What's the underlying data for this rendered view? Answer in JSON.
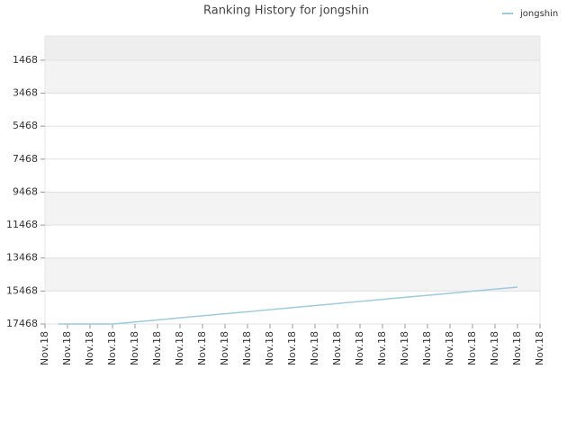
{
  "chart_data": {
    "type": "line",
    "title": "Ranking History for jongshin",
    "x": [
      0.6,
      1,
      2,
      3,
      4,
      5,
      6,
      7,
      8,
      9,
      10,
      11,
      12,
      13,
      14,
      15,
      16,
      17,
      18,
      19,
      20,
      21
    ],
    "series": [
      {
        "name": "jongshin",
        "color": "#9ecae1",
        "values": [
          17468,
          17468,
          17468,
          17468,
          17344,
          17220,
          17095,
          16971,
          16846,
          16722,
          16598,
          16473,
          16349,
          16224,
          16100,
          15976,
          15851,
          15727,
          15602,
          15478,
          15353,
          15228
        ]
      }
    ],
    "xlim": [
      0,
      22
    ],
    "xticks": [
      {
        "value": 0,
        "label": "Nov.18"
      },
      {
        "value": 1,
        "label": "Nov.18"
      },
      {
        "value": 2,
        "label": "Nov.18"
      },
      {
        "value": 3,
        "label": "Nov.18"
      },
      {
        "value": 4,
        "label": "Nov.18"
      },
      {
        "value": 5,
        "label": "Nov.18"
      },
      {
        "value": 6,
        "label": "Nov.18"
      },
      {
        "value": 7,
        "label": "Nov.18"
      },
      {
        "value": 8,
        "label": "Nov.18"
      },
      {
        "value": 9,
        "label": "Nov.18"
      },
      {
        "value": 10,
        "label": "Nov.18"
      },
      {
        "value": 11,
        "label": "Nov.18"
      },
      {
        "value": 12,
        "label": "Nov.18"
      },
      {
        "value": 13,
        "label": "Nov.18"
      },
      {
        "value": 14,
        "label": "Nov.18"
      },
      {
        "value": 15,
        "label": "Nov.18"
      },
      {
        "value": 16,
        "label": "Nov.18"
      },
      {
        "value": 17,
        "label": "Nov.18"
      },
      {
        "value": 18,
        "label": "Nov.18"
      },
      {
        "value": 19,
        "label": "Nov.18"
      },
      {
        "value": 20,
        "label": "Nov.18"
      },
      {
        "value": 21,
        "label": "Nov.18"
      },
      {
        "value": 22,
        "label": "Nov.18"
      }
    ],
    "ylim": [
      17468,
      0
    ],
    "yticks": [
      1468,
      3468,
      5468,
      7468,
      9468,
      11468,
      13468,
      15468,
      17468
    ],
    "grid": true,
    "legend": "top-right"
  }
}
